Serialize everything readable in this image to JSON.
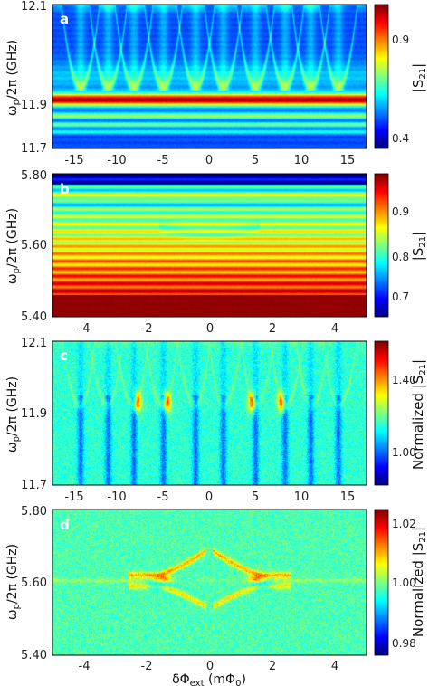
{
  "chart_data": [
    {
      "panel": "a",
      "type": "heatmap",
      "ylabel": "ω_p/2π (GHz)",
      "xticks": [
        "-15",
        "-10",
        "-5",
        "0",
        "5",
        "10",
        "15"
      ],
      "yticks": [
        "11.7",
        "11.9",
        "12.1"
      ],
      "xlim": [
        -17,
        17
      ],
      "ylim": [
        11.7,
        12.1
      ],
      "colorbar": {
        "label": "|S21|",
        "ticks": [
          "0.4",
          "0.9"
        ],
        "range": [
          0.1,
          1.05
        ]
      },
      "features": {
        "resonance_band_center_GHz": 11.83,
        "secondary_band_GHz": [
          11.76,
          11.79
        ],
        "branch_flux_mPhi0": [
          -14,
          -11,
          -8.2,
          -5,
          -1.5,
          1.5,
          5,
          8.2,
          11,
          14
        ]
      }
    },
    {
      "panel": "b",
      "type": "heatmap",
      "ylabel": "ω_p/2π (GHz)",
      "xticks": [
        "-4",
        "-2",
        "0",
        "2",
        "4"
      ],
      "yticks": [
        "5.40",
        "5.60",
        "5.80"
      ],
      "xlim": [
        -5,
        5
      ],
      "ylim": [
        5.4,
        5.8
      ],
      "colorbar": {
        "label": "|S21|",
        "ticks": [
          "0.7",
          "0.8",
          "0.9"
        ],
        "range": [
          0.66,
          0.98
        ]
      },
      "features": {
        "anticrossing_flux_mPhi0": [
          -1.5,
          1.5
        ],
        "anticrossing_GHz": 5.62
      }
    },
    {
      "panel": "c",
      "type": "heatmap",
      "ylabel": "ω_p/2π (GHz)",
      "xticks": [
        "-15",
        "-10",
        "-5",
        "0",
        "5",
        "10",
        "15"
      ],
      "yticks": [
        "11.7",
        "11.9",
        "12.1"
      ],
      "xlim": [
        -17,
        17
      ],
      "ylim": [
        11.7,
        12.1
      ],
      "colorbar": {
        "label": "Normalized |S21|",
        "ticks": [
          "1.00",
          "1.40"
        ],
        "range": [
          0.8,
          1.6
        ]
      },
      "features": {
        "branch_flux_mPhi0": [
          -14,
          -11,
          -8.2,
          -5,
          -1.5,
          1.5,
          5,
          8.2,
          11,
          14
        ]
      }
    },
    {
      "panel": "d",
      "type": "heatmap",
      "ylabel": "ω_p/2π (GHz)",
      "xlabel": "δΦ_ext (mΦ0)",
      "xticks": [
        "-4",
        "-2",
        "0",
        "2",
        "4"
      ],
      "yticks": [
        "5.40",
        "5.60",
        "5.80"
      ],
      "xlim": [
        -5,
        5
      ],
      "ylim": [
        5.4,
        5.8
      ],
      "colorbar": {
        "label": "Normalized |S21|",
        "ticks": [
          "0.98",
          "1.00",
          "1.02"
        ],
        "range": [
          0.975,
          1.03
        ]
      },
      "features": {
        "anticrossing_flux_mPhi0": [
          -1.5,
          1.5
        ],
        "anticrossing_GHz": 5.605
      }
    }
  ],
  "colors": {
    "cmap_jet": [
      "#00007f",
      "#0000ff",
      "#007fff",
      "#00ffff",
      "#7fff7f",
      "#ffff00",
      "#ff7f00",
      "#ff0000",
      "#7f0000"
    ]
  }
}
